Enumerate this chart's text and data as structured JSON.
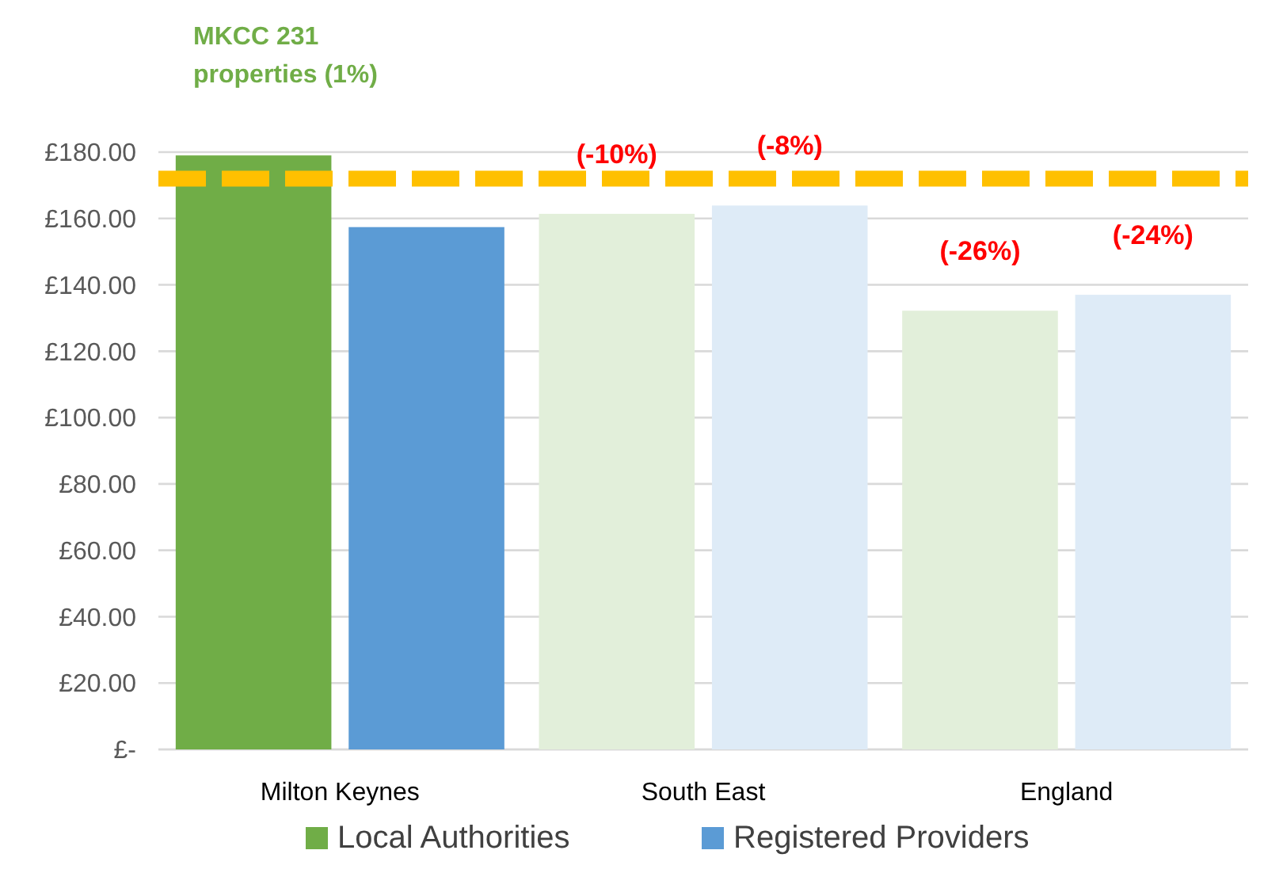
{
  "chart_data": {
    "type": "bar",
    "categories": [
      "Milton Keynes",
      "South East",
      "England"
    ],
    "series": [
      {
        "name": "Local Authorities",
        "color": "#70ad47",
        "colors": [
          "#70ad47",
          "#e2efda",
          "#e2efda"
        ],
        "values": [
          179,
          161.4,
          132.2
        ]
      },
      {
        "name": "Registered Providers",
        "color": "#5b9bd5",
        "colors": [
          "#5b9bd5",
          "#deebf7",
          "#deebf7"
        ],
        "values": [
          157.4,
          163.9,
          137
        ]
      }
    ],
    "ylim": [
      0,
      180
    ],
    "yticks": [
      {
        "value": 0,
        "label": "£-"
      },
      {
        "value": 20,
        "label": "£20.00"
      },
      {
        "value": 40,
        "label": "£40.00"
      },
      {
        "value": 60,
        "label": "£60.00"
      },
      {
        "value": 80,
        "label": "£80.00"
      },
      {
        "value": 100,
        "label": "£100.00"
      },
      {
        "value": 120,
        "label": "£120.00"
      },
      {
        "value": 140,
        "label": "£140.00"
      },
      {
        "value": 160,
        "label": "£160.00"
      },
      {
        "value": 180,
        "label": "£180.00"
      }
    ],
    "ref_lines": [
      {
        "axis": "y",
        "value": 172,
        "color": "#ffc000",
        "line_style": "dashed"
      }
    ],
    "annotations": [
      "MKCC 231 properties (1%)",
      "(-10%)",
      "(-8%)",
      "(-26%)",
      "(-24%)"
    ],
    "grid": "y",
    "legend": "bottom"
  }
}
